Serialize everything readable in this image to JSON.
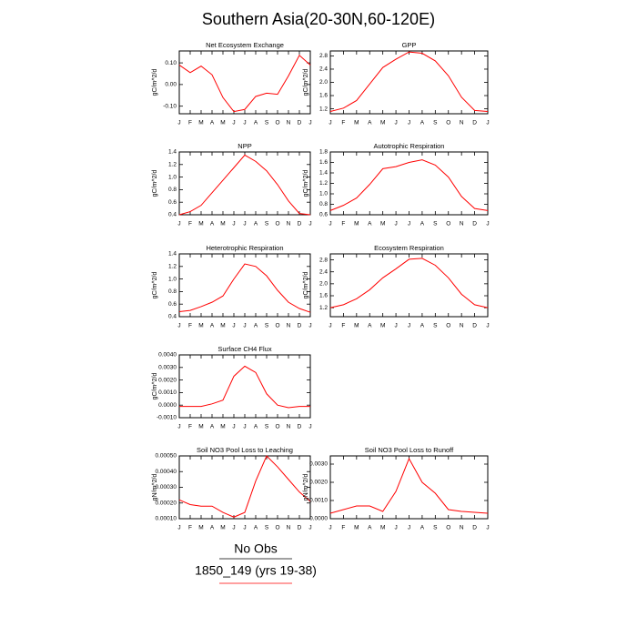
{
  "title": "Southern Asia(20-30N,60-120E)",
  "legend": [
    {
      "label": "No Obs",
      "color": "#000000"
    },
    {
      "label": "1850_149 (yrs 19-38)",
      "color": "#ff0000"
    }
  ],
  "chart_data": [
    {
      "type": "line",
      "title": "Net Ecosystem Exchange",
      "ylabel": "gC/m^2/d",
      "color": "#ff0000",
      "categories": [
        "J",
        "F",
        "M",
        "A",
        "M",
        "J",
        "J",
        "A",
        "S",
        "O",
        "N",
        "D",
        "J"
      ],
      "values": [
        0.09,
        0.055,
        0.085,
        0.045,
        -0.06,
        -0.125,
        -0.115,
        -0.055,
        -0.04,
        -0.045,
        0.04,
        0.135,
        0.09
      ],
      "ylim": [
        -0.135,
        0.155
      ],
      "yticks": [
        {
          "value": -0.1,
          "label": "-0.10"
        },
        {
          "value": 0,
          "label": "0.00"
        },
        {
          "value": 0.1,
          "label": "0.10"
        }
      ]
    },
    {
      "type": "line",
      "title": "GPP",
      "ylabel": "gC/m^2/d",
      "color": "#ff0000",
      "categories": [
        "J",
        "F",
        "M",
        "A",
        "M",
        "J",
        "J",
        "A",
        "S",
        "O",
        "N",
        "D",
        "J"
      ],
      "values": [
        1.12,
        1.22,
        1.45,
        1.95,
        2.45,
        2.7,
        2.92,
        2.88,
        2.65,
        2.2,
        1.55,
        1.15,
        1.12
      ],
      "ylim": [
        1.05,
        2.95
      ],
      "yticks": [
        1.2,
        1.6,
        {
          "value": 2,
          "label": "2.0"
        },
        2.4,
        2.8
      ]
    },
    {
      "type": "line",
      "title": "NPP",
      "ylabel": "gC/m^2/d",
      "color": "#ff0000",
      "categories": [
        "J",
        "F",
        "M",
        "A",
        "M",
        "J",
        "J",
        "A",
        "S",
        "O",
        "N",
        "D",
        "J"
      ],
      "values": [
        0.4,
        0.45,
        0.55,
        0.75,
        0.95,
        1.15,
        1.35,
        1.25,
        1.1,
        0.88,
        0.62,
        0.42,
        0.4
      ],
      "ylim": [
        0.4,
        1.4
      ],
      "yticks": [
        0.4,
        0.6,
        0.8,
        {
          "value": 1,
          "label": "1.0"
        },
        1.2,
        1.4
      ]
    },
    {
      "type": "line",
      "title": "Autotrophic Respiration",
      "ylabel": "gC/m^2/d",
      "color": "#ff0000",
      "categories": [
        "J",
        "F",
        "M",
        "A",
        "M",
        "J",
        "J",
        "A",
        "S",
        "O",
        "N",
        "D",
        "J"
      ],
      "values": [
        0.68,
        0.78,
        0.92,
        1.18,
        1.48,
        1.52,
        1.6,
        1.65,
        1.55,
        1.32,
        0.95,
        0.72,
        0.68
      ],
      "ylim": [
        0.6,
        1.8
      ],
      "yticks": [
        0.6,
        0.8,
        {
          "value": 1,
          "label": "1.0"
        },
        1.2,
        1.4,
        1.6,
        1.8
      ]
    },
    {
      "type": "line",
      "title": "Heterotrophic Respiration",
      "ylabel": "gC/m^2/d",
      "color": "#ff0000",
      "categories": [
        "J",
        "F",
        "M",
        "A",
        "M",
        "J",
        "J",
        "A",
        "S",
        "O",
        "N",
        "D",
        "J"
      ],
      "values": [
        0.48,
        0.5,
        0.56,
        0.63,
        0.73,
        1.0,
        1.24,
        1.2,
        1.05,
        0.82,
        0.63,
        0.53,
        0.47
      ],
      "ylim": [
        0.4,
        1.4
      ],
      "yticks": [
        0.4,
        0.6,
        0.8,
        {
          "value": 1,
          "label": "1.0"
        },
        1.2,
        1.4
      ]
    },
    {
      "type": "line",
      "title": "Ecosystem Respiration",
      "ylabel": "gC/m^2/d",
      "color": "#ff0000",
      "categories": [
        "J",
        "F",
        "M",
        "A",
        "M",
        "J",
        "J",
        "A",
        "S",
        "O",
        "N",
        "D",
        "J"
      ],
      "values": [
        1.2,
        1.3,
        1.5,
        1.8,
        2.2,
        2.5,
        2.82,
        2.85,
        2.62,
        2.2,
        1.65,
        1.3,
        1.2
      ],
      "ylim": [
        0.9,
        3.0
      ],
      "yticks": [
        1.2,
        1.6,
        {
          "value": 2,
          "label": "2.0"
        },
        2.4,
        2.8
      ]
    },
    {
      "type": "line",
      "title": "Surface CH4 Flux",
      "ylabel": "gC/m^2/d",
      "color": "#ff0000",
      "categories": [
        "J",
        "F",
        "M",
        "A",
        "M",
        "J",
        "J",
        "A",
        "S",
        "O",
        "N",
        "D",
        "J"
      ],
      "values": [
        -0.0001,
        -0.0001,
        -0.0001,
        0.0001,
        0.0004,
        0.0023,
        0.0031,
        0.0026,
        0.0009,
        0,
        -0.0002,
        -0.0001,
        -0.0001
      ],
      "ylim": [
        -0.001,
        0.004
      ],
      "yticks": [
        {
          "value": -0.001,
          "label": "-0.0010"
        },
        {
          "value": 0,
          "label": "0.0000"
        },
        {
          "value": 0.001,
          "label": "0.0010"
        },
        {
          "value": 0.002,
          "label": "0.0020"
        },
        {
          "value": 0.003,
          "label": "0.0030"
        },
        {
          "value": 0.004,
          "label": "0.0040"
        }
      ]
    },
    {
      "type": "line",
      "title": "Soil NO3 Pool Loss to Leaching",
      "ylabel": "gN/m^2/d",
      "color": "#ff0000",
      "categories": [
        "J",
        "F",
        "M",
        "A",
        "M",
        "J",
        "J",
        "A",
        "S",
        "O",
        "N",
        "D",
        "J"
      ],
      "values": [
        0.00022,
        0.00019,
        0.00018,
        0.00018,
        0.00014,
        0.00011,
        0.00014,
        0.00034,
        0.0005,
        0.00043,
        0.00035,
        0.00027,
        0.00021
      ],
      "ylim": [
        0.0001,
        0.0005
      ],
      "yticks": [
        {
          "value": 0.0001,
          "label": "0.00010"
        },
        {
          "value": 0.0002,
          "label": "0.00020"
        },
        {
          "value": 0.0003,
          "label": "0.00030"
        },
        {
          "value": 0.0004,
          "label": "0.00040"
        },
        {
          "value": 0.0005,
          "label": "0.00050"
        }
      ]
    },
    {
      "type": "line",
      "title": "Soil NO3 Pool Loss to Runoff",
      "ylabel": "gN/m^2/d",
      "color": "#ff0000",
      "categories": [
        "J",
        "F",
        "M",
        "A",
        "M",
        "J",
        "J",
        "A",
        "S",
        "O",
        "N",
        "D",
        "J"
      ],
      "values": [
        0.0003,
        0.0005,
        0.0007,
        0.0007,
        0.0004,
        0.0015,
        0.0033,
        0.002,
        0.0014,
        0.0005,
        0.0004,
        0.00035,
        0.0003
      ],
      "ylim": [
        0,
        0.00345
      ],
      "yticks": [
        {
          "value": 0,
          "label": "0.0000"
        },
        {
          "value": 0.001,
          "label": "0.0010"
        },
        {
          "value": 0.002,
          "label": "0.0020"
        },
        {
          "value": 0.003,
          "label": "0.0030"
        }
      ]
    }
  ]
}
